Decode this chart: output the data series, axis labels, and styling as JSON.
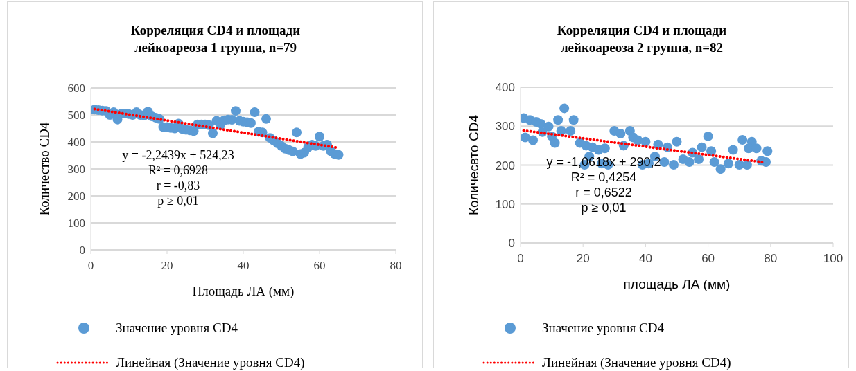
{
  "chart_data": [
    {
      "type": "scatter",
      "title": "Корреляция CD4 и площади лейкоареоза 1 группа, n=79",
      "xlabel": "Площадь ЛА (мм)",
      "ylabel": "Количество CD4",
      "xlim": [
        0,
        80
      ],
      "xticks": [
        0,
        20,
        40,
        60,
        80
      ],
      "ylim": [
        0,
        600
      ],
      "yticks": [
        0,
        100,
        200,
        300,
        400,
        500,
        600
      ],
      "grid": "y",
      "legend": "bottom",
      "annotations": [
        "y = -2,2439x + 524,23",
        "R² = 0,6928",
        "r = -0,83",
        "p ≥ 0,01"
      ],
      "series": [
        {
          "name": "Значение уровня CD4",
          "marker": "circle",
          "color": "#5b9bd5",
          "x": [
            1,
            2,
            3,
            4,
            5,
            6,
            7,
            8,
            9,
            10,
            11,
            12,
            13,
            14,
            15,
            16,
            17,
            18,
            19,
            20,
            21,
            22,
            23,
            24,
            25,
            26,
            27,
            28,
            29,
            30,
            31,
            32,
            33,
            34,
            35,
            36,
            37,
            38,
            39,
            40,
            41,
            42,
            43,
            44,
            45,
            46,
            47,
            48,
            49,
            50,
            51,
            52,
            53,
            54,
            55,
            56,
            57,
            58,
            59,
            60,
            61,
            62,
            63,
            64,
            65
          ],
          "values": [
            520,
            518,
            516,
            515,
            500,
            510,
            483,
            505,
            505,
            503,
            500,
            510,
            500,
            498,
            512,
            495,
            490,
            485,
            455,
            455,
            452,
            450,
            468,
            448,
            445,
            443,
            440,
            465,
            465,
            465,
            462,
            432,
            478,
            462,
            480,
            483,
            482,
            515,
            478,
            475,
            473,
            470,
            510,
            438,
            435,
            485,
            415,
            405,
            395,
            385,
            375,
            370,
            365,
            435,
            355,
            360,
            380,
            390,
            385,
            420,
            385,
            390,
            365,
            355,
            352
          ]
        },
        {
          "name": "Линейная (Значение уровня CD4)",
          "type": "line",
          "marker": "none",
          "line_style": "dotted",
          "color": "#ff0000",
          "x": [
            1,
            65
          ],
          "values": [
            522,
            378
          ]
        }
      ]
    },
    {
      "type": "scatter",
      "title": "Корреляция CD4 и площади лейкоареоза 2 группа, n=82",
      "xlabel": "площадь ЛА (мм)",
      "ylabel": "Количесвто CD4",
      "xlim": [
        0,
        100
      ],
      "xticks": [
        0,
        20,
        40,
        60,
        80,
        100
      ],
      "ylim": [
        0,
        400
      ],
      "yticks": [
        0,
        100,
        200,
        300,
        400
      ],
      "grid": "y",
      "legend": "bottom",
      "annotations": [
        "y = -1,0618x + 290,2",
        "R² = 0,4254",
        "r = 0,6522",
        "p  ≥ 0,01"
      ],
      "series": [
        {
          "name": "Значение уровня CD4",
          "marker": "circle",
          "color": "#5b9bd5",
          "x": [
            1,
            3,
            5,
            6.5,
            9,
            7,
            1.5,
            4,
            10,
            11,
            12,
            14,
            17,
            16,
            13,
            19,
            21,
            20.5,
            22,
            23,
            25,
            26,
            28,
            27,
            30,
            32,
            33,
            35,
            36,
            37.5,
            39,
            40,
            41,
            43,
            44,
            46,
            47,
            49,
            50,
            52,
            54,
            55,
            57,
            58,
            60,
            61,
            62,
            64,
            66.5,
            68,
            70,
            71,
            72.5,
            74,
            73,
            75.5,
            77,
            78.5,
            79
          ],
          "values": [
            321,
            316,
            311,
            306,
            299,
            285,
            271,
            264,
            274,
            257,
            316,
            346,
            316,
            288,
            288,
            257,
            250,
            201,
            222,
            246,
            239,
            204,
            201,
            243,
            288,
            281,
            250,
            288,
            271,
            264,
            201,
            260,
            204,
            222,
            253,
            208,
            246,
            201,
            260,
            215,
            208,
            232,
            215,
            246,
            274,
            236,
            208,
            190,
            204,
            239,
            201,
            265,
            201,
            260,
            243,
            243,
            211,
            208,
            236
          ]
        },
        {
          "name": "Линейная (Значение уровня CD4)",
          "type": "line",
          "marker": "none",
          "line_style": "dotted",
          "color": "#ff0000",
          "x": [
            1,
            78
          ],
          "values": [
            289,
            207
          ]
        }
      ]
    }
  ]
}
